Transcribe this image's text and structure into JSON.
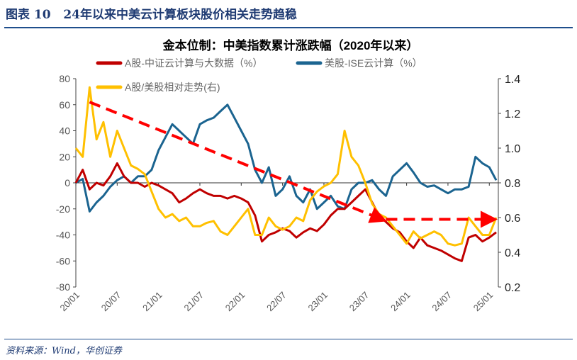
{
  "header": {
    "label": "图表 10",
    "title": "24年以来中美云计算板块股价相关走势趋稳"
  },
  "source": "资料来源：Wind，华创证券",
  "chart_data": {
    "type": "line",
    "title": "金本位制：中美指数累计涨跌幅（2020年以来）",
    "x": [
      "20/01",
      "20/02",
      "20/03",
      "20/04",
      "20/05",
      "20/06",
      "20/07",
      "20/08",
      "20/09",
      "20/10",
      "20/11",
      "20/12",
      "21/01",
      "21/02",
      "21/03",
      "21/04",
      "21/05",
      "21/06",
      "21/07",
      "21/08",
      "21/09",
      "21/10",
      "21/11",
      "21/12",
      "22/01",
      "22/02",
      "22/03",
      "22/04",
      "22/05",
      "22/06",
      "22/07",
      "22/08",
      "22/09",
      "22/10",
      "22/11",
      "22/12",
      "23/01",
      "23/02",
      "23/03",
      "23/04",
      "23/05",
      "23/06",
      "23/07",
      "23/08",
      "23/09",
      "23/10",
      "23/11",
      "23/12",
      "24/01",
      "24/02",
      "24/03",
      "24/04",
      "24/05",
      "24/06",
      "24/07",
      "24/08",
      "24/09",
      "24/10",
      "24/11",
      "24/12",
      "25/01",
      "25/02"
    ],
    "xticks": [
      "20/01",
      "20/07",
      "21/01",
      "21/07",
      "22/01",
      "22/07",
      "23/01",
      "23/07",
      "24/01",
      "24/07",
      "25/01"
    ],
    "y_left": {
      "ticks": [
        80,
        60,
        40,
        20,
        0,
        -20,
        -40,
        -60,
        -80
      ],
      "range": [
        -80,
        80
      ]
    },
    "y_right": {
      "ticks": [
        1.4,
        1.2,
        1.0,
        0.8,
        0.6,
        0.4,
        0.2
      ],
      "range": [
        0.2,
        1.4
      ]
    },
    "legend_placement": "top",
    "grid": false,
    "series": [
      {
        "name": "A股-中证云计算与大数据（%）",
        "axis": "left",
        "color": "#c00000",
        "values": [
          0,
          10,
          -5,
          0,
          -2,
          5,
          15,
          5,
          0,
          0,
          -3,
          0,
          -2,
          -5,
          -8,
          -15,
          -12,
          -8,
          -5,
          -8,
          -10,
          -10,
          -12,
          -10,
          -12,
          -15,
          -25,
          -45,
          -40,
          -38,
          -35,
          -37,
          -42,
          -38,
          -35,
          -37,
          -32,
          -25,
          -20,
          -20,
          -15,
          -10,
          -5,
          -15,
          -25,
          -30,
          -35,
          -38,
          -45,
          -50,
          -42,
          -48,
          -50,
          -52,
          -55,
          -58,
          -60,
          -42,
          -40,
          -45,
          -42,
          -38
        ]
      },
      {
        "name": "美股-ISE云计算（%）",
        "axis": "left",
        "color": "#1b6490",
        "values": [
          0,
          3,
          -22,
          -15,
          -10,
          -3,
          2,
          5,
          0,
          5,
          5,
          10,
          25,
          35,
          45,
          40,
          35,
          30,
          45,
          48,
          50,
          55,
          60,
          50,
          40,
          30,
          10,
          0,
          12,
          -10,
          -5,
          5,
          -10,
          -15,
          -5,
          -20,
          -15,
          -10,
          -18,
          -20,
          -5,
          0,
          0,
          2,
          -5,
          -10,
          5,
          10,
          15,
          8,
          0,
          -3,
          -2,
          -5,
          -8,
          -5,
          -5,
          -3,
          20,
          15,
          12,
          2
        ]
      },
      {
        "name": "A股/美股相对走势(右)",
        "axis": "right",
        "color": "#ffc000",
        "values": [
          1.0,
          0.95,
          1.35,
          1.05,
          1.15,
          0.95,
          1.1,
          1.0,
          0.9,
          0.88,
          0.85,
          0.75,
          0.65,
          0.6,
          0.62,
          0.58,
          0.6,
          0.55,
          0.55,
          0.57,
          0.58,
          0.52,
          0.5,
          0.55,
          0.6,
          0.65,
          0.5,
          0.5,
          0.6,
          0.55,
          0.53,
          0.55,
          0.6,
          0.58,
          0.7,
          0.75,
          0.78,
          0.8,
          0.85,
          1.1,
          0.95,
          0.9,
          0.8,
          0.68,
          0.62,
          0.6,
          0.55,
          0.5,
          0.45,
          0.52,
          0.48,
          0.5,
          0.52,
          0.5,
          0.45,
          0.44,
          0.45,
          0.6,
          0.55,
          0.5,
          0.5,
          0.6
        ]
      }
    ],
    "annotations": [
      {
        "type": "dashed-arrow",
        "color": "#ff0000",
        "from": [
          "20/03",
          62
        ],
        "to": [
          "23/10",
          -28
        ]
      },
      {
        "type": "dashed-arrow",
        "color": "#ff0000",
        "from": [
          "23/10",
          -28
        ],
        "to": [
          "25/02",
          -28
        ]
      }
    ]
  }
}
